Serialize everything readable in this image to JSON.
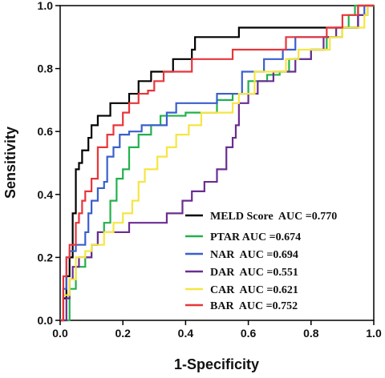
{
  "chart_data": {
    "type": "line",
    "xlabel": "1-Specificity",
    "ylabel": "Sensitivity",
    "xlim": [
      0,
      1
    ],
    "ylim": [
      0,
      1
    ],
    "xticks": [
      "0.0",
      "0.2",
      "0.4",
      "0.6",
      "0.8",
      "1.0"
    ],
    "yticks": [
      "0.0",
      "0.2",
      "0.4",
      "0.6",
      "0.8",
      "1.0"
    ],
    "grid": false,
    "legend_position": "bottom-right",
    "series": [
      {
        "name": "MELD Score  AUC =0.770",
        "color": "#000000",
        "points": [
          [
            0,
            0
          ],
          [
            0.01,
            0.07
          ],
          [
            0.02,
            0.14
          ],
          [
            0.03,
            0.2
          ],
          [
            0.04,
            0.34
          ],
          [
            0.05,
            0.48
          ],
          [
            0.06,
            0.5
          ],
          [
            0.07,
            0.54
          ],
          [
            0.08,
            0.54
          ],
          [
            0.09,
            0.58
          ],
          [
            0.1,
            0.62
          ],
          [
            0.12,
            0.65
          ],
          [
            0.14,
            0.65
          ],
          [
            0.16,
            0.69
          ],
          [
            0.19,
            0.69
          ],
          [
            0.22,
            0.72
          ],
          [
            0.25,
            0.76
          ],
          [
            0.29,
            0.79
          ],
          [
            0.33,
            0.79
          ],
          [
            0.36,
            0.83
          ],
          [
            0.42,
            0.86
          ],
          [
            0.43,
            0.86
          ],
          [
            0.43,
            0.9
          ],
          [
            0.55,
            0.9
          ],
          [
            0.57,
            0.93
          ],
          [
            0.93,
            0.93
          ],
          [
            0.95,
            1.0
          ],
          [
            1,
            1
          ]
        ]
      },
      {
        "name": "PTAR AUC =0.674",
        "color": "#22b14c",
        "points": [
          [
            0,
            0
          ],
          [
            0.03,
            0.1
          ],
          [
            0.05,
            0.17
          ],
          [
            0.08,
            0.2
          ],
          [
            0.1,
            0.24
          ],
          [
            0.12,
            0.28
          ],
          [
            0.14,
            0.31
          ],
          [
            0.16,
            0.38
          ],
          [
            0.18,
            0.45
          ],
          [
            0.2,
            0.48
          ],
          [
            0.22,
            0.55
          ],
          [
            0.25,
            0.59
          ],
          [
            0.29,
            0.62
          ],
          [
            0.32,
            0.65
          ],
          [
            0.4,
            0.66
          ],
          [
            0.45,
            0.66
          ],
          [
            0.5,
            0.7
          ],
          [
            0.55,
            0.72
          ],
          [
            0.6,
            0.76
          ],
          [
            0.66,
            0.78
          ],
          [
            0.7,
            0.79
          ],
          [
            0.73,
            0.83
          ],
          [
            0.8,
            0.86
          ],
          [
            0.85,
            0.9
          ],
          [
            0.88,
            0.93
          ],
          [
            0.92,
            0.97
          ],
          [
            0.94,
            1.0
          ],
          [
            1,
            1
          ]
        ]
      },
      {
        "name": "NAR  AUC =0.694",
        "color": "#3a5fcd",
        "points": [
          [
            0,
            0
          ],
          [
            0.01,
            0.1
          ],
          [
            0.02,
            0.2
          ],
          [
            0.03,
            0.22
          ],
          [
            0.05,
            0.24
          ],
          [
            0.08,
            0.28
          ],
          [
            0.09,
            0.34
          ],
          [
            0.1,
            0.38
          ],
          [
            0.12,
            0.42
          ],
          [
            0.14,
            0.44
          ],
          [
            0.15,
            0.52
          ],
          [
            0.17,
            0.55
          ],
          [
            0.19,
            0.59
          ],
          [
            0.22,
            0.6
          ],
          [
            0.26,
            0.62
          ],
          [
            0.31,
            0.62
          ],
          [
            0.34,
            0.66
          ],
          [
            0.37,
            0.69
          ],
          [
            0.48,
            0.69
          ],
          [
            0.5,
            0.72
          ],
          [
            0.55,
            0.72
          ],
          [
            0.58,
            0.79
          ],
          [
            0.65,
            0.83
          ],
          [
            0.71,
            0.86
          ],
          [
            0.75,
            0.9
          ],
          [
            0.85,
            0.9
          ],
          [
            0.9,
            0.93
          ],
          [
            0.95,
            0.97
          ],
          [
            0.97,
            1.0
          ],
          [
            1,
            1
          ]
        ]
      },
      {
        "name": "DAR  AUC =0.551",
        "color": "#6a2d91",
        "points": [
          [
            0,
            0
          ],
          [
            0.02,
            0.07
          ],
          [
            0.03,
            0.13
          ],
          [
            0.04,
            0.17
          ],
          [
            0.06,
            0.2
          ],
          [
            0.1,
            0.24
          ],
          [
            0.12,
            0.28
          ],
          [
            0.2,
            0.28
          ],
          [
            0.22,
            0.31
          ],
          [
            0.3,
            0.31
          ],
          [
            0.34,
            0.34
          ],
          [
            0.39,
            0.38
          ],
          [
            0.42,
            0.41
          ],
          [
            0.46,
            0.44
          ],
          [
            0.5,
            0.48
          ],
          [
            0.53,
            0.55
          ],
          [
            0.55,
            0.58
          ],
          [
            0.56,
            0.62
          ],
          [
            0.57,
            0.69
          ],
          [
            0.6,
            0.72
          ],
          [
            0.63,
            0.76
          ],
          [
            0.68,
            0.79
          ],
          [
            0.72,
            0.79
          ],
          [
            0.75,
            0.83
          ],
          [
            0.8,
            0.86
          ],
          [
            0.84,
            0.9
          ],
          [
            0.88,
            0.93
          ],
          [
            0.95,
            0.97
          ],
          [
            0.98,
            1.0
          ],
          [
            1,
            1
          ]
        ]
      },
      {
        "name": "CAR  AUC =0.621",
        "color": "#f5e642",
        "points": [
          [
            0,
            0
          ],
          [
            0.01,
            0.08
          ],
          [
            0.03,
            0.13
          ],
          [
            0.05,
            0.2
          ],
          [
            0.08,
            0.22
          ],
          [
            0.1,
            0.24
          ],
          [
            0.12,
            0.24
          ],
          [
            0.14,
            0.28
          ],
          [
            0.17,
            0.31
          ],
          [
            0.2,
            0.34
          ],
          [
            0.23,
            0.38
          ],
          [
            0.25,
            0.44
          ],
          [
            0.27,
            0.48
          ],
          [
            0.31,
            0.52
          ],
          [
            0.34,
            0.55
          ],
          [
            0.37,
            0.59
          ],
          [
            0.41,
            0.62
          ],
          [
            0.45,
            0.66
          ],
          [
            0.5,
            0.66
          ],
          [
            0.55,
            0.69
          ],
          [
            0.57,
            0.72
          ],
          [
            0.6,
            0.72
          ],
          [
            0.62,
            0.79
          ],
          [
            0.67,
            0.79
          ],
          [
            0.72,
            0.83
          ],
          [
            0.76,
            0.86
          ],
          [
            0.82,
            0.86
          ],
          [
            0.86,
            0.9
          ],
          [
            0.9,
            0.93
          ],
          [
            0.97,
            0.97
          ],
          [
            0.98,
            1.0
          ],
          [
            1,
            1
          ]
        ]
      },
      {
        "name": "BAR  AUC =0.752",
        "color": "#e8353b",
        "points": [
          [
            0,
            0
          ],
          [
            0.01,
            0.14
          ],
          [
            0.02,
            0.2
          ],
          [
            0.03,
            0.24
          ],
          [
            0.05,
            0.31
          ],
          [
            0.06,
            0.34
          ],
          [
            0.07,
            0.38
          ],
          [
            0.08,
            0.41
          ],
          [
            0.1,
            0.45
          ],
          [
            0.12,
            0.55
          ],
          [
            0.15,
            0.59
          ],
          [
            0.17,
            0.62
          ],
          [
            0.2,
            0.66
          ],
          [
            0.22,
            0.69
          ],
          [
            0.25,
            0.72
          ],
          [
            0.28,
            0.73
          ],
          [
            0.3,
            0.76
          ],
          [
            0.33,
            0.79
          ],
          [
            0.38,
            0.79
          ],
          [
            0.42,
            0.83
          ],
          [
            0.48,
            0.83
          ],
          [
            0.55,
            0.86
          ],
          [
            0.68,
            0.86
          ],
          [
            0.72,
            0.9
          ],
          [
            0.8,
            0.9
          ],
          [
            0.85,
            0.93
          ],
          [
            0.9,
            0.97
          ],
          [
            0.95,
            1.0
          ],
          [
            1,
            1
          ]
        ]
      }
    ]
  }
}
